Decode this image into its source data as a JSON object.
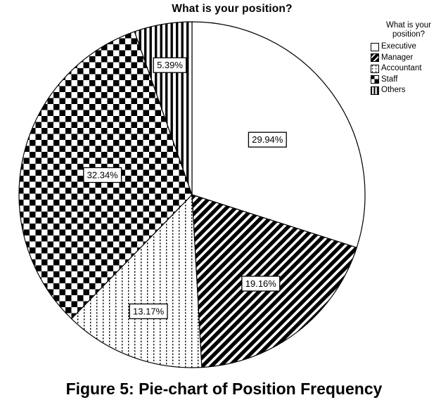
{
  "figure": {
    "title": "What is your position?",
    "caption": "Figure 5: Pie-chart of Position Frequency"
  },
  "legend": {
    "title": "What is your position?",
    "items": [
      {
        "label": "Executive",
        "pattern": "solid-white"
      },
      {
        "label": "Manager",
        "pattern": "diagonal-stripes"
      },
      {
        "label": "Accountant",
        "pattern": "dots"
      },
      {
        "label": "Staff",
        "pattern": "checkerboard"
      },
      {
        "label": "Others",
        "pattern": "vertical-stripes"
      }
    ]
  },
  "chart_data": {
    "type": "pie",
    "title": "What is your position?",
    "categories": [
      "Executive",
      "Manager",
      "Accountant",
      "Staff",
      "Others"
    ],
    "values": [
      29.94,
      19.16,
      13.17,
      32.34,
      5.39
    ],
    "value_labels": [
      "29.94%",
      "19.16%",
      "13.17%",
      "32.34%",
      "5.39%"
    ],
    "patterns": [
      "solid-white",
      "diagonal-stripes",
      "dots",
      "checkerboard",
      "vertical-stripes"
    ],
    "start_angle_deg": 0,
    "direction": "clockwise",
    "legend_position": "top-right",
    "label_radius_fractions": [
      0.54,
      0.65,
      0.72,
      0.53,
      0.76
    ],
    "colors": {
      "foreground": "#000000",
      "background": "#ffffff"
    }
  }
}
